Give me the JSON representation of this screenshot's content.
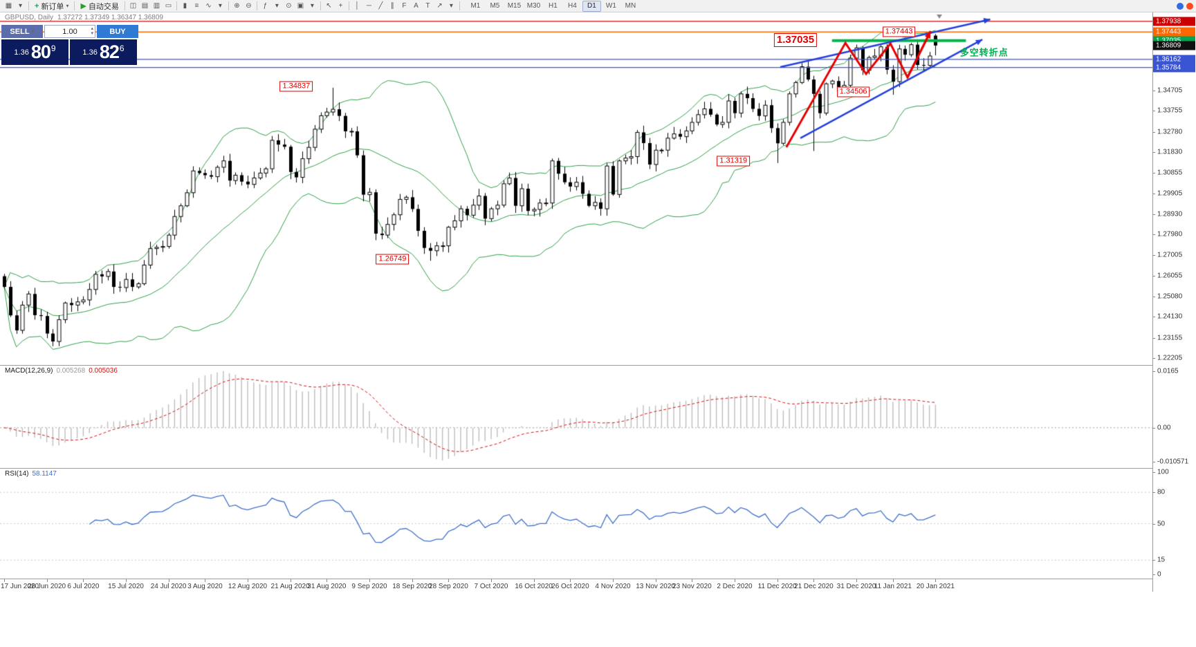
{
  "toolbar": {
    "items": [
      {
        "name": "new-chart-icon",
        "glyph": "▦"
      },
      {
        "name": "chart-list-caret-icon",
        "glyph": "▾"
      },
      {
        "name": "separator"
      },
      {
        "name": "new-order-button",
        "glyph": "+",
        "glyph_color": "#18a558",
        "label": "新订单",
        "caret": "▾"
      },
      {
        "name": "separator"
      },
      {
        "name": "autotrading-button",
        "glyph": "▶",
        "glyph_color": "#27a02c",
        "label": "自动交易"
      },
      {
        "name": "separator"
      },
      {
        "name": "chart-window-icon",
        "glyph": "◫"
      },
      {
        "name": "market-watch-icon",
        "glyph": "▤"
      },
      {
        "name": "navigator-icon",
        "glyph": "▥"
      },
      {
        "name": "terminal-icon",
        "glyph": "▭"
      },
      {
        "name": "separator"
      },
      {
        "name": "candlestick-chart-icon",
        "glyph": "▮"
      },
      {
        "name": "bar-chart-icon",
        "glyph": "≡"
      },
      {
        "name": "line-chart-icon",
        "glyph": "∿"
      },
      {
        "name": "chart-type-caret-icon",
        "glyph": "▾"
      },
      {
        "name": "separator"
      },
      {
        "name": "zoom-in-icon",
        "glyph": "⊕"
      },
      {
        "name": "zoom-out-icon",
        "glyph": "⊖"
      },
      {
        "name": "separator"
      },
      {
        "name": "indicators-icon",
        "glyph": "ƒ"
      },
      {
        "name": "indicators-caret-icon",
        "glyph": "▾"
      },
      {
        "name": "clock-icon",
        "glyph": "⊙"
      },
      {
        "name": "templates-icon",
        "glyph": "▣"
      },
      {
        "name": "templates-caret-icon",
        "glyph": "▾"
      },
      {
        "name": "separator"
      },
      {
        "name": "cursor-icon",
        "glyph": "↖"
      },
      {
        "name": "crosshair-icon",
        "glyph": "+"
      },
      {
        "name": "separator"
      },
      {
        "name": "vertical-line-icon",
        "glyph": "│"
      },
      {
        "name": "horizontal-line-icon",
        "glyph": "─"
      },
      {
        "name": "trendline-icon",
        "glyph": "╱"
      },
      {
        "name": "channel-icon",
        "glyph": "∥"
      },
      {
        "name": "fibonacci-icon",
        "glyph": "F"
      },
      {
        "name": "text-icon",
        "glyph": "A"
      },
      {
        "name": "label-icon",
        "glyph": "T"
      },
      {
        "name": "arrow-tool-icon",
        "glyph": "↗"
      },
      {
        "name": "objects-caret-icon",
        "glyph": "▾"
      },
      {
        "name": "separator"
      }
    ],
    "timeframes": [
      "M1",
      "M5",
      "M15",
      "M30",
      "H1",
      "H4",
      "D1",
      "W1",
      "MN"
    ],
    "active_timeframe": "D1",
    "status_icons": [
      {
        "name": "status-blue-icon",
        "color": "#2e6fe0"
      },
      {
        "name": "status-red-icon",
        "color": "#ff4a1f"
      }
    ]
  },
  "chart": {
    "title": "GBPUSD, Daily",
    "ohlc": "1.37272 1.37349 1.36347 1.36809"
  },
  "trade_widget": {
    "sell_label": "SELL",
    "buy_label": "BUY",
    "volume": "1.00",
    "caret": "▾",
    "spin_up": "▴",
    "spin_down": "▾",
    "sell_price": {
      "small": "1.36",
      "big": "80",
      "sup": "9"
    },
    "buy_price": {
      "small": "1.36",
      "big": "82",
      "sup": "6"
    }
  },
  "price_axis": {
    "ticks": [
      "1.34705",
      "1.33755",
      "1.32780",
      "1.31830",
      "1.30855",
      "1.29905",
      "1.28930",
      "1.27980",
      "1.27005",
      "1.26055",
      "1.25080",
      "1.24130",
      "1.23155",
      "1.22205"
    ],
    "boxes": [
      {
        "value": "1.37938",
        "price": 1.37938,
        "color": "#cc0000"
      },
      {
        "value": "1.37443",
        "price": 1.37443,
        "color": "#ff6600"
      },
      {
        "value": "1.37035",
        "price": 1.37035,
        "color": "#00a551"
      },
      {
        "value": "1.36809",
        "price": 1.36809,
        "color": "#101010"
      },
      {
        "value": "1.36162",
        "price": 1.36162,
        "color": "#3a55d4"
      },
      {
        "value": "1.35784",
        "price": 1.35784,
        "color": "#3a55d4"
      }
    ]
  },
  "time_axis": {
    "labels": [
      "17 Jun 2020",
      "26 Jun 2020",
      "6 Jul 2020",
      "15 Jul 2020",
      "24 Jul 2020",
      "3 Aug 2020",
      "12 Aug 2020",
      "21 Aug 2020",
      "31 Aug 2020",
      "9 Sep 2020",
      "18 Sep 2020",
      "28 Sep 2020",
      "7 Oct 2020",
      "16 Oct 2020",
      "26 Oct 2020",
      "4 Nov 2020",
      "13 Nov 2020",
      "23 Nov 2020",
      "2 Dec 2020",
      "11 Dec 2020",
      "21 Dec 2020",
      "31 Dec 2020",
      "11 Jan 2021",
      "20 Jan 2021"
    ],
    "tick_bars": [
      0,
      7,
      13,
      20,
      27,
      33,
      40,
      47,
      53,
      60,
      67,
      73,
      80,
      87,
      93,
      100,
      107,
      113,
      120,
      127,
      133,
      140,
      146,
      153
    ]
  },
  "indicators": {
    "macd": {
      "label": "MACD(12,26,9)",
      "value_main": "0.005268",
      "value_signal": "0.005036",
      "axis": [
        "0.0165",
        "0.00",
        "-0.010571"
      ],
      "params": {
        "fast": 12,
        "slow": 26,
        "signal": 9
      }
    },
    "rsi": {
      "label": "RSI(14)",
      "value": "58.1147",
      "axis": [
        "100",
        "80",
        "50",
        "15",
        "0"
      ],
      "levels": [
        80,
        50,
        15
      ],
      "period": 14
    }
  },
  "chart_data": {
    "type": "candlestick",
    "symbol": "GBPUSD",
    "timeframe": "Daily",
    "price_range": [
      1.2188,
      1.3823
    ],
    "closes": [
      1.2553,
      1.242,
      1.235,
      1.2468,
      1.252,
      1.2421,
      1.2417,
      1.2335,
      1.2298,
      1.24,
      1.2478,
      1.2468,
      1.2483,
      1.2492,
      1.2541,
      1.2612,
      1.2602,
      1.2625,
      1.2553,
      1.255,
      1.2588,
      1.2553,
      1.2568,
      1.2655,
      1.2732,
      1.2738,
      1.2742,
      1.2795,
      1.2882,
      1.2932,
      1.2993,
      1.3095,
      1.3085,
      1.3075,
      1.3068,
      1.3112,
      1.3142,
      1.305,
      1.3075,
      1.3045,
      1.3032,
      1.3062,
      1.3085,
      1.3105,
      1.3238,
      1.3218,
      1.3208,
      1.309,
      1.3065,
      1.3152,
      1.3205,
      1.329,
      1.3353,
      1.337,
      1.3383,
      1.3352,
      1.328,
      1.328,
      1.3168,
      1.2984,
      1.2995,
      1.2802,
      1.2795,
      1.2845,
      1.289,
      1.2962,
      1.2972,
      1.2917,
      1.2815,
      1.2735,
      1.2722,
      1.2745,
      1.2745,
      1.2832,
      1.2862,
      1.2918,
      1.2888,
      1.2935,
      1.2978,
      1.2872,
      1.2918,
      1.2935,
      1.3035,
      1.3062,
      1.2932,
      1.3012,
      1.2908,
      1.2915,
      1.2945,
      1.2945,
      1.3142,
      1.3082,
      1.3042,
      1.3022,
      1.3042,
      1.2988,
      1.2932,
      1.2948,
      1.2918,
      1.3118,
      1.2985,
      1.3142,
      1.3155,
      1.3162,
      1.3275,
      1.3225,
      1.3125,
      1.3192,
      1.3192,
      1.3248,
      1.3268,
      1.3255,
      1.3282,
      1.3322,
      1.3358,
      1.3385,
      1.3358,
      1.3312,
      1.3322,
      1.3422,
      1.3365,
      1.3455,
      1.3435,
      1.3385,
      1.3352,
      1.3402,
      1.3295,
      1.3224,
      1.3322,
      1.3455,
      1.3508,
      1.3582,
      1.3522,
      1.3455,
      1.3365,
      1.3502,
      1.3515,
      1.3465,
      1.3495,
      1.3622,
      1.367,
      1.3565,
      1.3625,
      1.3632,
      1.3675,
      1.3568,
      1.3512,
      1.3665,
      1.3638,
      1.3685,
      1.359,
      1.3588,
      1.3632,
      1.36809
    ],
    "extremes": {
      "54": {
        "h": 1.34837
      },
      "70": {
        "l": 1.26749
      },
      "127": {
        "l": 1.31319
      },
      "133": {
        "l": 1.3188
      },
      "146": {
        "l": 1.34506
      },
      "153": {
        "o": 1.37272,
        "h": 1.37349,
        "l": 1.36347
      }
    },
    "bollinger": {
      "period": 20,
      "deviation": 2,
      "color": "#2f9e46"
    },
    "hlines": [
      {
        "price": 1.37938,
        "color": "#cc0000"
      },
      {
        "price": 1.37443,
        "color": "#ff6600"
      },
      {
        "price": 1.36162,
        "color": "#3a55d4"
      },
      {
        "price": 1.35784,
        "color": "#3a55d4"
      }
    ],
    "green_segment": {
      "price": 1.37035,
      "bar_start": 136,
      "bar_end": 158,
      "color": "#00b44c"
    },
    "trend_arrows": [
      {
        "from": [
          127.5,
          1.358
        ],
        "to": [
          162.0,
          1.3803
        ],
        "color": "#2340dd"
      },
      {
        "from": [
          130.8,
          1.3248
        ],
        "to": [
          160.7,
          1.3709
        ],
        "color": "#2340dd"
      }
    ],
    "zigzag": {
      "color": "#e60000",
      "points": [
        [
          128.5,
          1.3206
        ],
        [
          138.2,
          1.3693
        ],
        [
          141.6,
          1.3548
        ],
        [
          145.6,
          1.369
        ],
        [
          148.4,
          1.3532
        ],
        [
          152.2,
          1.3748
        ]
      ]
    },
    "labels": [
      {
        "text": "1.34837",
        "bar": 48.0,
        "price": 1.349
      },
      {
        "text": "1.26749",
        "bar": 63.8,
        "price": 1.2682
      },
      {
        "text": "1.31319",
        "bar": 119.8,
        "price": 1.3141
      },
      {
        "text": "1.34506",
        "bar": 139.5,
        "price": 1.3464
      },
      {
        "text": "1.37035",
        "bar": 130.0,
        "price": 1.3706,
        "big": true
      },
      {
        "text": "1.37443",
        "bar": 147.0,
        "price": 1.3744
      }
    ],
    "note_text": {
      "text": "多空转折点",
      "bar": 161.0,
      "price": 1.3652,
      "color": "#00b050"
    }
  }
}
